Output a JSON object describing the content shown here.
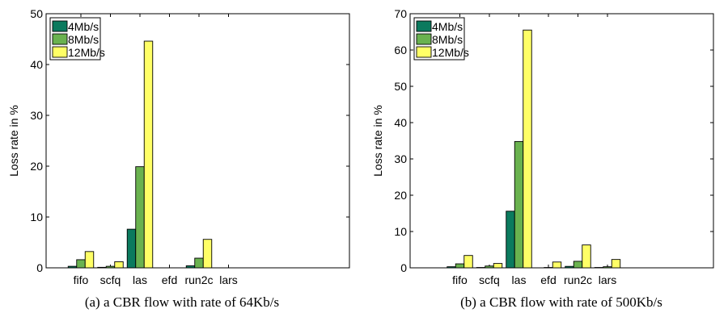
{
  "chart_data": [
    {
      "type": "bar",
      "caption": "(a) a CBR flow with rate of 64Kb/s",
      "ylabel": "Loss rate in %",
      "ylim": [
        0,
        50
      ],
      "yticks": [
        0,
        10,
        20,
        30,
        40,
        50
      ],
      "categories": [
        "fifo",
        "scfq",
        "las",
        "efd",
        "run2c",
        "lars"
      ],
      "legend_position": "top-left",
      "series": [
        {
          "name": "4Mb/s",
          "color": "#0b7a5e",
          "values": [
            0.3,
            0.1,
            7.6,
            0.0,
            0.4,
            0.0
          ]
        },
        {
          "name": "8Mb/s",
          "color": "#6ab24f",
          "values": [
            1.6,
            0.3,
            19.9,
            0.0,
            1.9,
            0.0
          ]
        },
        {
          "name": "12Mb/s",
          "color": "#ffff66",
          "values": [
            3.2,
            1.2,
            44.6,
            0.0,
            5.6,
            0.0
          ]
        }
      ]
    },
    {
      "type": "bar",
      "caption": "(b) a CBR flow with rate of 500Kb/s",
      "ylabel": "Loss rate in %",
      "ylim": [
        0,
        70
      ],
      "yticks": [
        0,
        10,
        20,
        30,
        40,
        50,
        60,
        70
      ],
      "categories": [
        "fifo",
        "scfq",
        "las",
        "efd",
        "run2c",
        "lars"
      ],
      "legend_position": "top-left",
      "series": [
        {
          "name": "4Mb/s",
          "color": "#0b7a5e",
          "values": [
            0.3,
            0.1,
            15.6,
            0.0,
            0.4,
            0.1
          ]
        },
        {
          "name": "8Mb/s",
          "color": "#6ab24f",
          "values": [
            1.1,
            0.5,
            34.8,
            0.1,
            1.8,
            0.3
          ]
        },
        {
          "name": "12Mb/s",
          "color": "#ffff66",
          "values": [
            3.4,
            1.2,
            65.5,
            1.6,
            6.3,
            2.3
          ]
        }
      ]
    }
  ]
}
